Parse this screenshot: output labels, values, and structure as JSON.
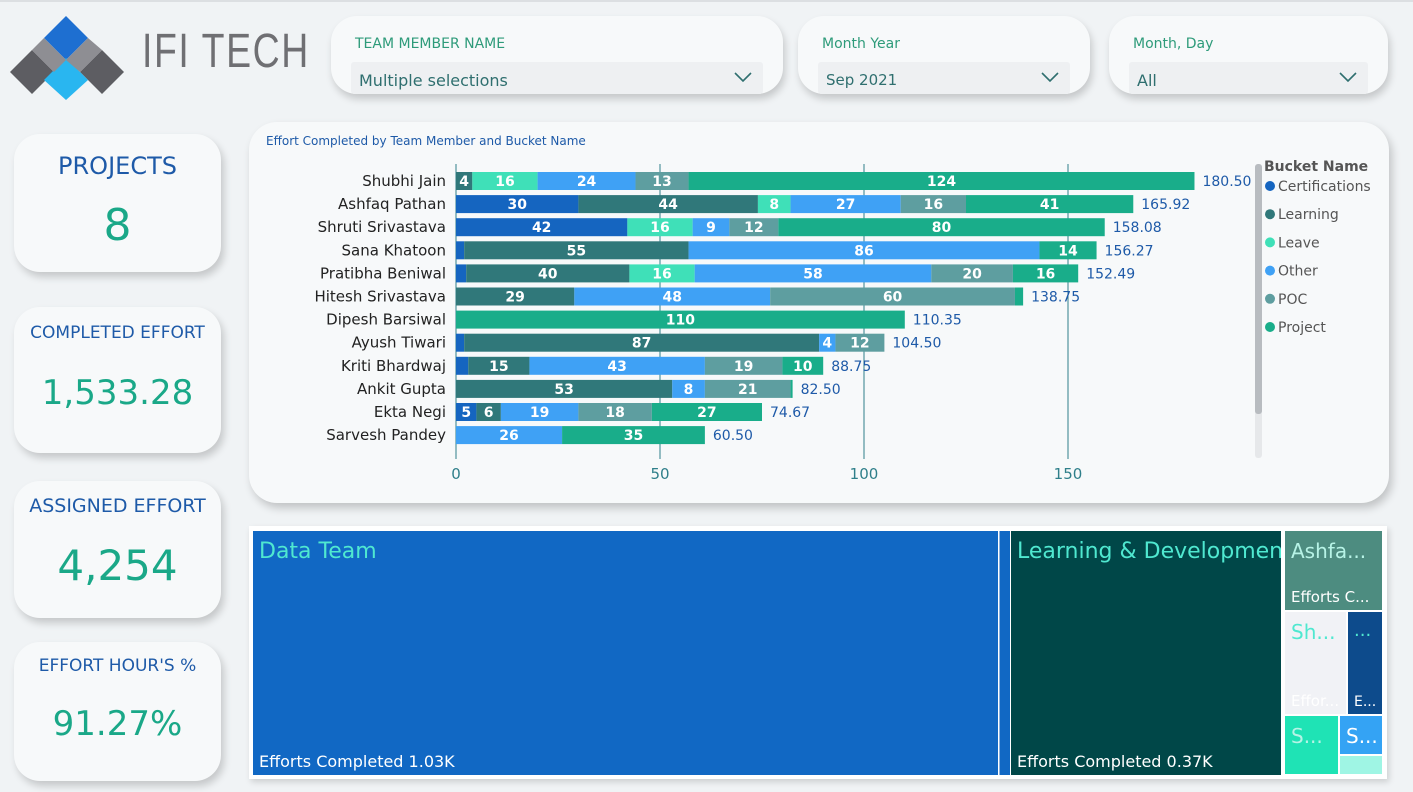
{
  "logo": {
    "text": "IFI TECH"
  },
  "slicers": {
    "team_member": {
      "title": "TEAM MEMBER NAME",
      "value": "Multiple selections"
    },
    "month_year": {
      "title": "Month Year",
      "value": "Sep 2021"
    },
    "month_day": {
      "title": "Month, Day",
      "value": "All"
    }
  },
  "kpis": {
    "projects": {
      "title": "PROJECTS",
      "value": "8"
    },
    "completed_effort": {
      "title": "COMPLETED EFFORT",
      "value": "1,533.28"
    },
    "assigned_effort": {
      "title": "ASSIGNED EFFORT",
      "value": "4,254"
    },
    "effort_hours_pct": {
      "title": "EFFORT HOUR'S %",
      "value": "91.27%"
    }
  },
  "chart_data": {
    "type": "bar",
    "orientation": "horizontal-stacked",
    "title": "Effort Completed by Team Member and Bucket Name",
    "legend_title": "Bucket Name",
    "legend_position": "right",
    "xlim": [
      0,
      180.5
    ],
    "x_ticks": [
      0,
      50,
      100,
      150
    ],
    "gridlines": true,
    "categories": [
      "Shubhi Jain",
      "Ashfaq Pathan",
      "Shruti Srivastava",
      "Sana Khatoon",
      "Pratibha Beniwal",
      "Hitesh Srivastava",
      "Dipesh Barsiwal",
      "Ayush Tiwari",
      "Kriti Bhardwaj",
      "Ankit Gupta",
      "Ekta Negi",
      "Sarvesh Pandey"
    ],
    "series": [
      {
        "name": "Certifications",
        "color": "#1565c0",
        "values": [
          0,
          30,
          42,
          2,
          2.5,
          0,
          0,
          2,
          3,
          0,
          5,
          0
        ]
      },
      {
        "name": "Learning",
        "color": "#30787a",
        "values": [
          4,
          44,
          0,
          55,
          40,
          29,
          0,
          87,
          15,
          53,
          6,
          0
        ]
      },
      {
        "name": "Leave",
        "color": "#3fe0b8",
        "values": [
          16,
          8,
          16,
          0,
          16,
          0,
          0,
          0,
          0,
          0,
          0,
          0
        ]
      },
      {
        "name": "Other",
        "color": "#3fa1f5",
        "values": [
          24,
          27,
          9,
          86,
          58,
          48,
          0,
          4,
          43,
          8,
          19,
          26
        ]
      },
      {
        "name": "POC",
        "color": "#5e9ea0",
        "values": [
          13,
          16,
          12,
          0,
          20,
          60,
          0,
          12,
          19,
          21,
          18,
          0
        ]
      },
      {
        "name": "Project",
        "color": "#19ad8a",
        "values": [
          124,
          41,
          80,
          14,
          16,
          2,
          110,
          0,
          10,
          0.5,
          27,
          35
        ]
      }
    ],
    "totals": [
      "180.50",
      "165.92",
      "158.08",
      "156.27",
      "152.49",
      "138.75",
      "110.35",
      "104.50",
      "88.75",
      "82.50",
      "74.67",
      "60.50"
    ]
  },
  "treemap": {
    "tiles": [
      {
        "label": "Data Team",
        "value": "Efforts Completed 1.03K",
        "bg": "#1168c4",
        "fg": "#4fe8d0"
      },
      {
        "label": "Learning & Development",
        "value": "Efforts Completed 0.37K",
        "bg": "#004748",
        "fg": "#4fe8d0"
      },
      {
        "label": "Ashfa...",
        "value": "Efforts C...",
        "bg": "#4d8c80",
        "fg": "#b7f3e6"
      },
      {
        "label": "Sh...",
        "value": "Effor...",
        "bg": "#f1f2f6",
        "fg": "#4fe8d0"
      },
      {
        "label": "...",
        "value": "E...",
        "bg": "#0d4b8c",
        "fg": "#4fe8d0"
      },
      {
        "label": "S...",
        "value": "",
        "bg": "#1fe3b5",
        "fg": "#b7f3e6"
      },
      {
        "label": "S...",
        "value": "",
        "bg": "#34a3f4",
        "fg": "#ffffff"
      }
    ]
  }
}
